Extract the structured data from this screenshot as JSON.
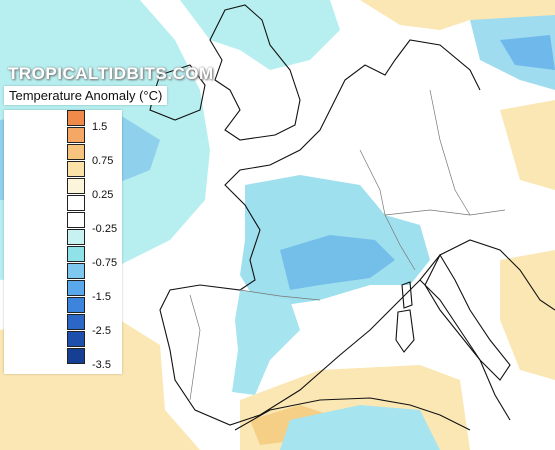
{
  "watermark": "TROPICALTIDBITS.COM",
  "legend": {
    "title": "Temperature Anomaly (°C)",
    "bins": [
      {
        "color": "#f08a4b"
      },
      {
        "color": "#f5a865"
      },
      {
        "color": "#f7c47f"
      },
      {
        "color": "#fbe3a8"
      },
      {
        "color": "#fdf4dc"
      },
      {
        "color": "#ffffff"
      },
      {
        "color": "#ffffff"
      },
      {
        "color": "#c8f2f2"
      },
      {
        "color": "#8fe3e8"
      },
      {
        "color": "#7ec8ef"
      },
      {
        "color": "#5aa8ec"
      },
      {
        "color": "#3d85dc"
      },
      {
        "color": "#2c66c7"
      },
      {
        "color": "#1f4fad"
      },
      {
        "color": "#163e93"
      }
    ],
    "labels": [
      {
        "text": "1.5",
        "bin": 1
      },
      {
        "text": "0.75",
        "bin": 3
      },
      {
        "text": "0.25",
        "bin": 5
      },
      {
        "text": "-0.25",
        "bin": 7
      },
      {
        "text": "-0.75",
        "bin": 9
      },
      {
        "text": "-1.5",
        "bin": 11
      },
      {
        "text": "-2.5",
        "bin": 13
      },
      {
        "text": "-3.5",
        "bin": 15
      }
    ]
  },
  "map_colors": {
    "ocean_cool": "#a9ecef",
    "ocean_cooler": "#7fc6ee",
    "land_neutral": "#ffffff",
    "anomaly_blue": "#8fd9ee",
    "anomaly_blue_dark": "#5aa6ea",
    "anomaly_warm": "#fbe7b3",
    "anomaly_warm_dark": "#f6cf86",
    "coastline": "#111111",
    "border": "#777777"
  }
}
